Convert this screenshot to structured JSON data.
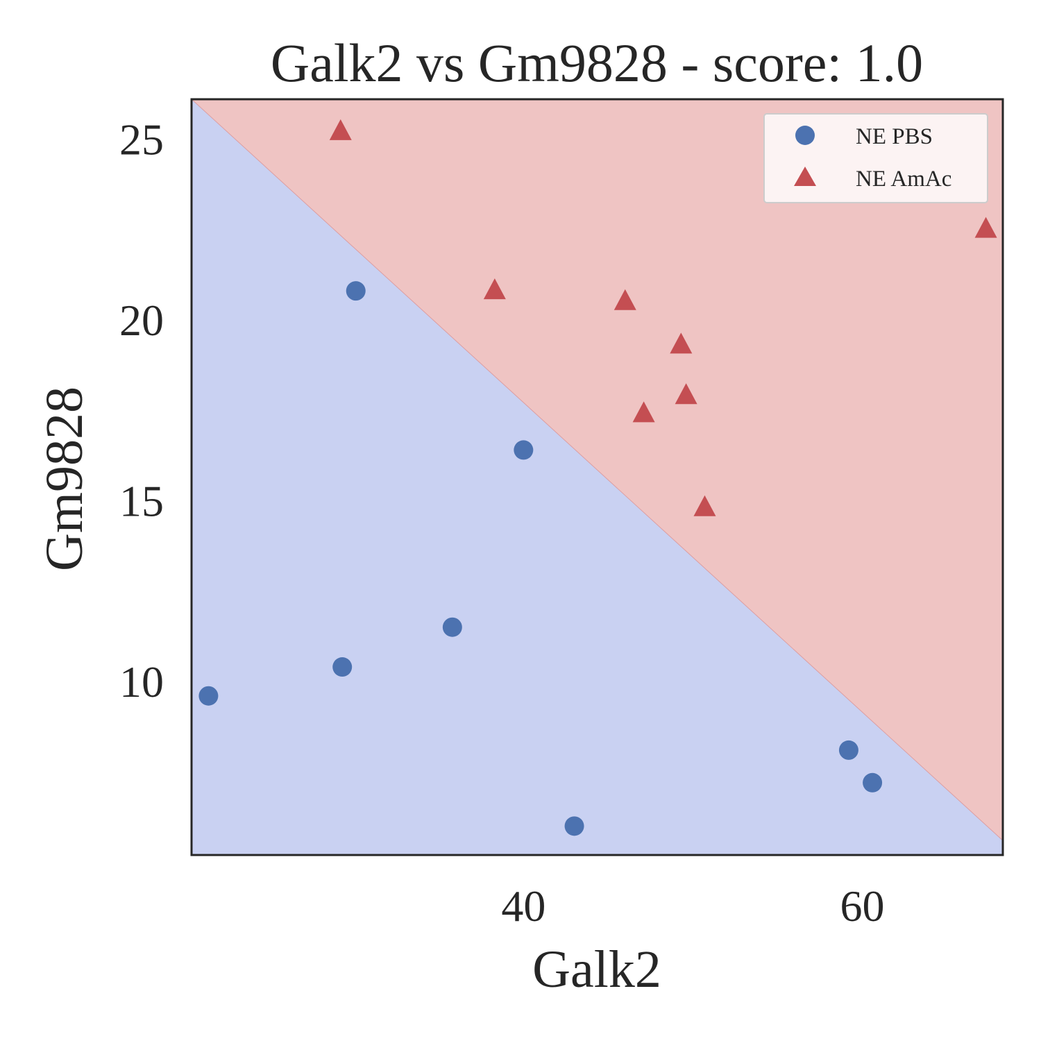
{
  "chart_data": {
    "type": "scatter",
    "title": "Galk2 vs Gm9828 - score: 1.0",
    "xlabel": "Galk2",
    "ylabel": "Gm9828",
    "xlim": [
      20.4,
      68.3
    ],
    "ylim": [
      5.2,
      26.1
    ],
    "xticks": [
      40,
      60
    ],
    "yticks": [
      10,
      15,
      20,
      25
    ],
    "grid": false,
    "legend_position": "top-right",
    "decision_boundary": {
      "x": [
        20.4,
        68.3
      ],
      "y": [
        26.1,
        5.6
      ],
      "below_color": "#c9d1f2",
      "above_color": "#efc4c3"
    },
    "series": [
      {
        "name": "NE PBS",
        "marker": "circle",
        "color": "#4c72b0",
        "points": [
          {
            "x": 21.4,
            "y": 9.6
          },
          {
            "x": 29.3,
            "y": 10.4
          },
          {
            "x": 30.1,
            "y": 20.8
          },
          {
            "x": 35.8,
            "y": 11.5
          },
          {
            "x": 40.0,
            "y": 16.4
          },
          {
            "x": 43.0,
            "y": 6.0
          },
          {
            "x": 59.2,
            "y": 8.1
          },
          {
            "x": 60.6,
            "y": 7.2
          }
        ]
      },
      {
        "name": "NE AmAc",
        "marker": "triangle",
        "color": "#c44e52",
        "points": [
          {
            "x": 29.2,
            "y": 25.2
          },
          {
            "x": 38.3,
            "y": 20.8
          },
          {
            "x": 46.0,
            "y": 20.5
          },
          {
            "x": 47.1,
            "y": 17.4
          },
          {
            "x": 49.3,
            "y": 19.3
          },
          {
            "x": 49.6,
            "y": 17.9
          },
          {
            "x": 50.7,
            "y": 14.8
          },
          {
            "x": 67.3,
            "y": 22.5
          }
        ]
      }
    ]
  }
}
